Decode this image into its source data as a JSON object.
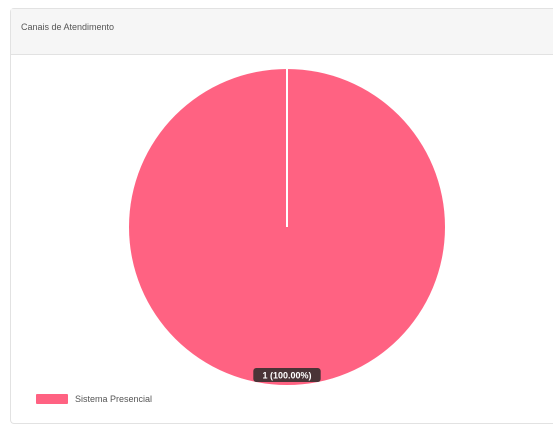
{
  "panel": {
    "title": "Canais de Atendimento"
  },
  "chart_data": {
    "type": "pie",
    "title": "Canais de Atendimento",
    "slices": [
      {
        "label": "Sistema Presencial",
        "value": 1,
        "percent": 100.0,
        "data_label": "1 (100.00%)",
        "color": "#ff6282"
      }
    ],
    "legend": "bottom-left"
  },
  "legend": {
    "items": [
      {
        "label": "Sistema Presencial",
        "color": "#ff6282"
      }
    ]
  }
}
